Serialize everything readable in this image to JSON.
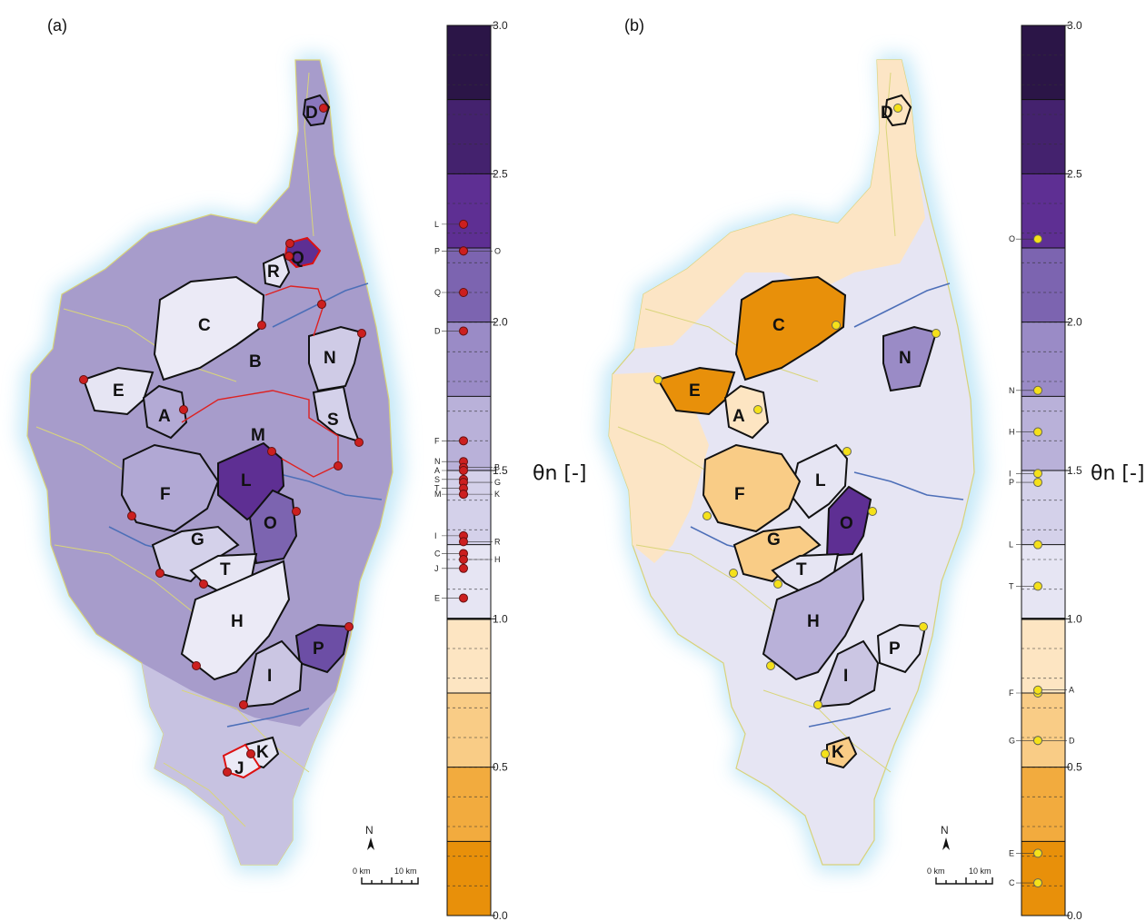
{
  "panels": [
    {
      "label": "(a)",
      "axis_label": "θn [-]",
      "marker_color": "#cc1f1f",
      "basin_labels": [
        "D",
        "Q",
        "R",
        "C",
        "B",
        "N",
        "E",
        "A",
        "S",
        "M",
        "F",
        "L",
        "O",
        "G",
        "T",
        "H",
        "P",
        "I",
        "K",
        "J"
      ],
      "scale_markers": [
        {
          "label": "L",
          "value": 2.33,
          "side": "left"
        },
        {
          "label": "P",
          "value": 2.24,
          "side": "left"
        },
        {
          "label": "O",
          "value": 2.24,
          "side": "right"
        },
        {
          "label": "Q",
          "value": 2.1,
          "side": "left"
        },
        {
          "label": "D",
          "value": 1.97,
          "side": "left"
        },
        {
          "label": "F",
          "value": 1.6,
          "side": "left"
        },
        {
          "label": "N",
          "value": 1.53,
          "side": "left"
        },
        {
          "label": "B",
          "value": 1.51,
          "side": "right"
        },
        {
          "label": "A",
          "value": 1.5,
          "side": "left"
        },
        {
          "label": "S",
          "value": 1.47,
          "side": "left"
        },
        {
          "label": "G",
          "value": 1.46,
          "side": "right"
        },
        {
          "label": "T",
          "value": 1.44,
          "side": "left"
        },
        {
          "label": "M",
          "value": 1.42,
          "side": "left"
        },
        {
          "label": "K",
          "value": 1.42,
          "side": "right"
        },
        {
          "label": "I",
          "value": 1.28,
          "side": "left"
        },
        {
          "label": "R",
          "value": 1.26,
          "side": "right"
        },
        {
          "label": "C",
          "value": 1.22,
          "side": "left"
        },
        {
          "label": "H",
          "value": 1.2,
          "side": "right"
        },
        {
          "label": "J",
          "value": 1.17,
          "side": "left"
        },
        {
          "label": "E",
          "value": 1.07,
          "side": "left"
        }
      ]
    },
    {
      "label": "(b)",
      "axis_label": "θn [-]",
      "marker_color": "#f5e11a",
      "basin_labels": [
        "D",
        "C",
        "N",
        "E",
        "A",
        "L",
        "F",
        "O",
        "G",
        "T",
        "H",
        "P",
        "I",
        "K"
      ],
      "scale_markers": [
        {
          "label": "O",
          "value": 2.28,
          "side": "left"
        },
        {
          "label": "N",
          "value": 1.77,
          "side": "left"
        },
        {
          "label": "H",
          "value": 1.63,
          "side": "left"
        },
        {
          "label": "I",
          "value": 1.49,
          "side": "left"
        },
        {
          "label": "P",
          "value": 1.46,
          "side": "left"
        },
        {
          "label": "L",
          "value": 1.25,
          "side": "left"
        },
        {
          "label": "T",
          "value": 1.11,
          "side": "left"
        },
        {
          "label": "F",
          "value": 0.75,
          "side": "left"
        },
        {
          "label": "A",
          "value": 0.76,
          "side": "right"
        },
        {
          "label": "G",
          "value": 0.59,
          "side": "left"
        },
        {
          "label": "D",
          "value": 0.59,
          "side": "right"
        },
        {
          "label": "E",
          "value": 0.21,
          "side": "left"
        },
        {
          "label": "C",
          "value": 0.11,
          "side": "left"
        }
      ]
    }
  ],
  "colorbar": {
    "ticks": [
      "0.0",
      "0.5",
      "1.0",
      "1.5",
      "2.0",
      "2.5",
      "3.0"
    ],
    "range": [
      0,
      3
    ],
    "classes": [
      {
        "from": 0.0,
        "to": 0.25,
        "color": "#e8900a"
      },
      {
        "from": 0.25,
        "to": 0.5,
        "color": "#f2ab3e"
      },
      {
        "from": 0.5,
        "to": 0.75,
        "color": "#f9cc86"
      },
      {
        "from": 0.75,
        "to": 1.0,
        "color": "#fde5c2"
      },
      {
        "from": 1.0,
        "to": 1.25,
        "color": "#e6e5f3"
      },
      {
        "from": 1.25,
        "to": 1.5,
        "color": "#d4d1ea"
      },
      {
        "from": 1.5,
        "to": 1.75,
        "color": "#b9b1d9"
      },
      {
        "from": 1.75,
        "to": 2.0,
        "color": "#9a8bc6"
      },
      {
        "from": 2.0,
        "to": 2.25,
        "color": "#7c64b0"
      },
      {
        "from": 2.25,
        "to": 2.5,
        "color": "#5e2f93"
      },
      {
        "from": 2.5,
        "to": 2.75,
        "color": "#44226e"
      },
      {
        "from": 2.75,
        "to": 3.0,
        "color": "#2b1547"
      }
    ]
  },
  "compass": {
    "north_label": "N"
  },
  "scalebar": {
    "start_label": "0 km",
    "end_label": "10 km"
  }
}
